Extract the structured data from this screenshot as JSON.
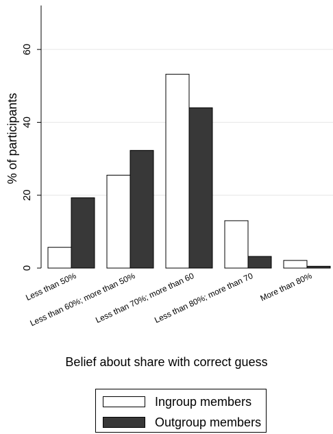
{
  "chart_data": {
    "type": "bar",
    "title": "",
    "xlabel": "Belief about share with correct guess",
    "ylabel": "% of participants",
    "ylim": [
      0,
      70
    ],
    "yticks": [
      0,
      20,
      40,
      60
    ],
    "grid": true,
    "legend_position": "bottom",
    "categories": [
      "Less than 50%",
      "Less than 60%; more than 50%",
      "Less than 70%; more than 60",
      "Less than 80%; more than 70",
      "More than 80%"
    ],
    "series": [
      {
        "name": "Ingroup members",
        "color": "#ffffff",
        "values": [
          5.7,
          25.5,
          53.2,
          13.0,
          2.1
        ]
      },
      {
        "name": "Outgroup members",
        "color": "#383838",
        "values": [
          19.3,
          32.3,
          44.0,
          3.2,
          0.5
        ]
      }
    ]
  }
}
